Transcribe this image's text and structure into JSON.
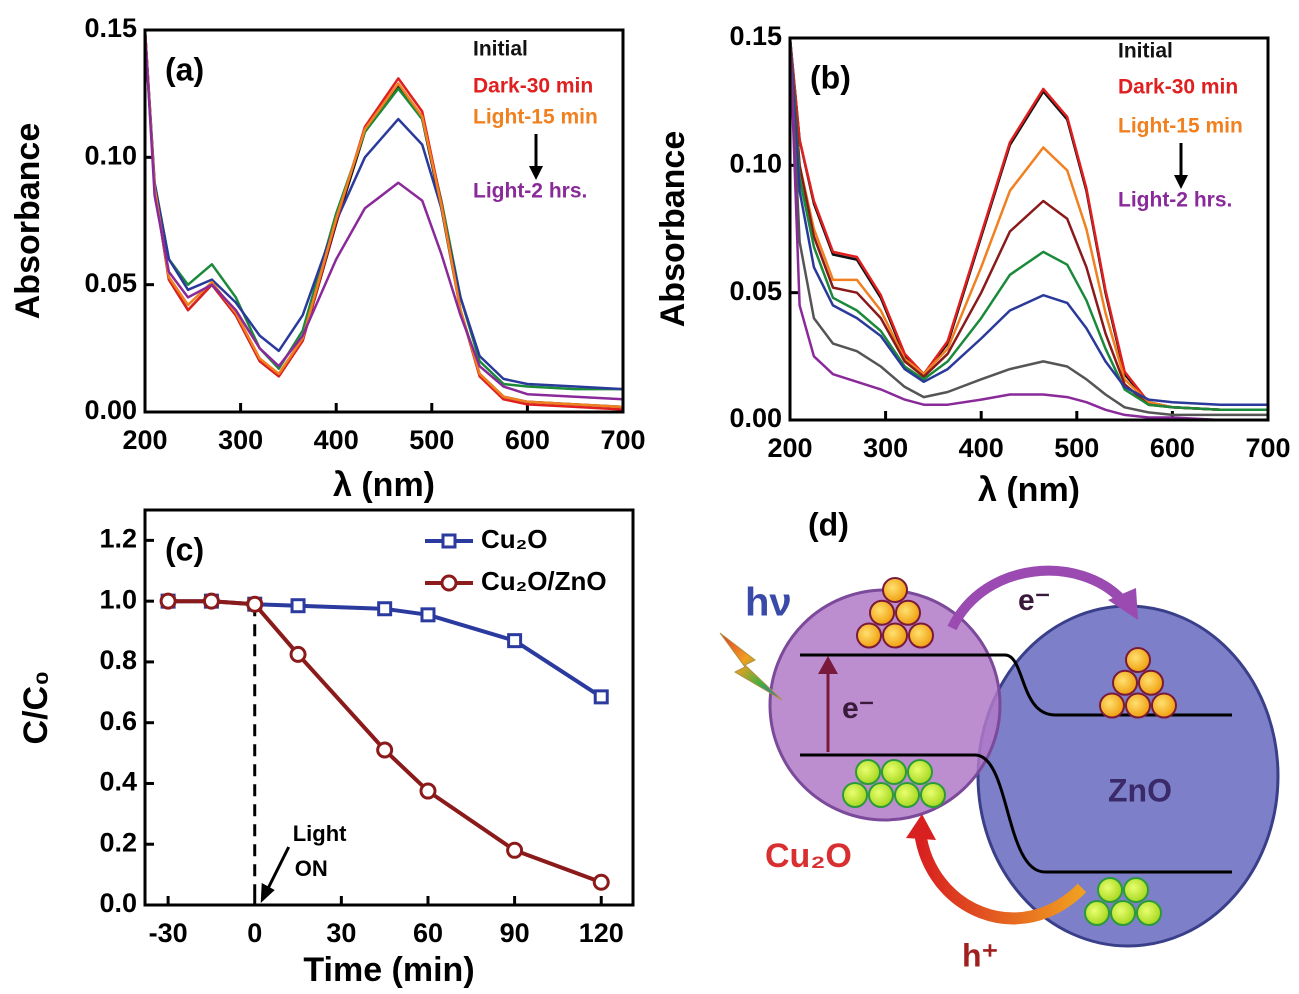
{
  "chart_data": [
    {
      "type": "line",
      "label": "(a)",
      "ylabel": "Absorbance",
      "xlabel": "λ (nm)",
      "xlim": [
        200,
        700
      ],
      "ylim": [
        0,
        0.15
      ],
      "xticks": [
        200,
        300,
        400,
        500,
        600,
        700
      ],
      "yticks": [
        {
          "value": 0,
          "label": "0.00"
        },
        {
          "value": 0.05,
          "label": "0.05"
        },
        {
          "value": 0.1,
          "label": "0.10"
        },
        {
          "value": 0.15,
          "label": "0.15"
        }
      ],
      "x": [
        200,
        210,
        225,
        245,
        270,
        295,
        320,
        340,
        365,
        400,
        430,
        465,
        490,
        510,
        530,
        550,
        575,
        600,
        650,
        700
      ],
      "series": [
        {
          "name": "Initial",
          "color": "#111111",
          "values": [
            0.15,
            0.088,
            0.052,
            0.04,
            0.05,
            0.038,
            0.02,
            0.014,
            0.028,
            0.074,
            0.11,
            0.128,
            0.115,
            0.08,
            0.04,
            0.015,
            0.006,
            0.004,
            0.003,
            0.002
          ]
        },
        {
          "color": "#1a8a3a",
          "values": [
            0.15,
            0.09,
            0.06,
            0.05,
            0.058,
            0.045,
            0.025,
            0.017,
            0.032,
            0.078,
            0.11,
            0.127,
            0.115,
            0.083,
            0.045,
            0.02,
            0.011,
            0.01,
            0.009,
            0.009
          ]
        },
        {
          "color": "#2a3a9a",
          "values": [
            0.15,
            0.09,
            0.06,
            0.048,
            0.052,
            0.043,
            0.03,
            0.024,
            0.038,
            0.075,
            0.1,
            0.115,
            0.105,
            0.08,
            0.045,
            0.022,
            0.013,
            0.011,
            0.01,
            0.009
          ]
        },
        {
          "name": "Dark-30 min",
          "color": "#e02020",
          "values": [
            0.15,
            0.088,
            0.052,
            0.04,
            0.05,
            0.038,
            0.02,
            0.014,
            0.028,
            0.075,
            0.112,
            0.131,
            0.118,
            0.082,
            0.04,
            0.014,
            0.005,
            0.003,
            0.002,
            0.001
          ]
        },
        {
          "name": "Light-15 min",
          "color": "#f08020",
          "values": [
            0.15,
            0.088,
            0.053,
            0.042,
            0.051,
            0.039,
            0.021,
            0.015,
            0.029,
            0.076,
            0.111,
            0.129,
            0.116,
            0.081,
            0.04,
            0.015,
            0.006,
            0.004,
            0.003,
            0.002
          ]
        },
        {
          "name": "Light-2 hrs.",
          "color": "#8a2a9a",
          "values": [
            0.15,
            0.085,
            0.055,
            0.045,
            0.05,
            0.04,
            0.025,
            0.018,
            0.03,
            0.06,
            0.08,
            0.09,
            0.083,
            0.062,
            0.038,
            0.018,
            0.01,
            0.007,
            0.006,
            0.005
          ]
        }
      ]
    },
    {
      "type": "line",
      "label": "(b)",
      "ylabel": "Absorbance",
      "xlabel": "λ (nm)",
      "xlim": [
        200,
        700
      ],
      "ylim": [
        0,
        0.15
      ],
      "xticks": [
        200,
        300,
        400,
        500,
        600,
        700
      ],
      "yticks": [
        {
          "value": 0,
          "label": "0.00"
        },
        {
          "value": 0.05,
          "label": "0.05"
        },
        {
          "value": 0.1,
          "label": "0.10"
        },
        {
          "value": 0.15,
          "label": "0.15"
        }
      ],
      "x": [
        200,
        210,
        225,
        245,
        270,
        295,
        320,
        340,
        365,
        400,
        430,
        465,
        490,
        510,
        530,
        550,
        575,
        600,
        650,
        700
      ],
      "series": [
        {
          "name": "Initial",
          "color": "#111111",
          "values": [
            0.15,
            0.11,
            0.085,
            0.065,
            0.063,
            0.048,
            0.025,
            0.018,
            0.03,
            0.072,
            0.108,
            0.129,
            0.118,
            0.09,
            0.05,
            0.018,
            0.007,
            0.005,
            0.004,
            0.004
          ]
        },
        {
          "name": "Dark-30 min",
          "color": "#e02020",
          "values": [
            0.15,
            0.11,
            0.086,
            0.066,
            0.064,
            0.049,
            0.026,
            0.018,
            0.031,
            0.073,
            0.109,
            0.13,
            0.119,
            0.091,
            0.051,
            0.019,
            0.007,
            0.005,
            0.004,
            0.004
          ]
        },
        {
          "name": "Light-15 min",
          "color": "#f08020",
          "values": [
            0.15,
            0.1,
            0.075,
            0.055,
            0.055,
            0.043,
            0.024,
            0.018,
            0.028,
            0.06,
            0.09,
            0.107,
            0.098,
            0.075,
            0.042,
            0.016,
            0.007,
            0.005,
            0.004,
            0.004
          ]
        },
        {
          "color": "#8a1a1a",
          "values": [
            0.15,
            0.1,
            0.072,
            0.052,
            0.05,
            0.04,
            0.023,
            0.017,
            0.026,
            0.05,
            0.074,
            0.086,
            0.079,
            0.06,
            0.034,
            0.014,
            0.006,
            0.005,
            0.004,
            0.004
          ]
        },
        {
          "color": "#1a8a3a",
          "values": [
            0.15,
            0.095,
            0.068,
            0.048,
            0.043,
            0.035,
            0.021,
            0.016,
            0.023,
            0.04,
            0.057,
            0.066,
            0.061,
            0.047,
            0.028,
            0.012,
            0.006,
            0.005,
            0.004,
            0.004
          ]
        },
        {
          "color": "#2a3a9a",
          "values": [
            0.15,
            0.09,
            0.06,
            0.045,
            0.04,
            0.033,
            0.02,
            0.015,
            0.02,
            0.032,
            0.043,
            0.049,
            0.046,
            0.036,
            0.023,
            0.013,
            0.008,
            0.007,
            0.006,
            0.006
          ]
        },
        {
          "color": "#555555",
          "values": [
            0.15,
            0.07,
            0.04,
            0.03,
            0.027,
            0.021,
            0.013,
            0.009,
            0.011,
            0.016,
            0.02,
            0.023,
            0.021,
            0.016,
            0.01,
            0.005,
            0.003,
            0.002,
            0.002,
            0.002
          ]
        },
        {
          "name": "Light-2 hrs.",
          "color": "#8a2a9a",
          "values": [
            0.15,
            0.045,
            0.025,
            0.018,
            0.015,
            0.012,
            0.008,
            0.006,
            0.006,
            0.008,
            0.01,
            0.01,
            0.009,
            0.007,
            0.004,
            0.002,
            0.001,
            0.001,
            0,
            0
          ]
        }
      ]
    },
    {
      "type": "line",
      "label": "(c)",
      "ylabel": "C/C₀",
      "xlabel": "Time (min)",
      "xlim": [
        -38,
        131
      ],
      "ylim": [
        0,
        1.3
      ],
      "xticks": [
        -30,
        0,
        30,
        60,
        90,
        120
      ],
      "yticks": [
        {
          "value": 0,
          "label": "0.0"
        },
        0.2,
        0.4,
        0.6,
        0.8,
        {
          "value": 1,
          "label": "1.0"
        },
        1.2
      ],
      "light_on": 0,
      "annotation": [
        "Light",
        "ON"
      ],
      "x": [
        -30,
        -15,
        0,
        15,
        45,
        60,
        90,
        120
      ],
      "series": [
        {
          "name": "Cu₂O",
          "color": "#2b3a9e",
          "marker": "square",
          "values": [
            1.0,
            1.0,
            0.99,
            0.985,
            0.975,
            0.955,
            0.87,
            0.685
          ]
        },
        {
          "name": "Cu₂O/ZnO",
          "color": "#8b1a1a",
          "marker": "circle",
          "values": [
            1.0,
            1.0,
            0.99,
            0.825,
            0.51,
            0.375,
            0.18,
            0.075
          ]
        }
      ]
    }
  ],
  "diagram": {
    "label": "(d)",
    "light": "hν",
    "electron_top": "e⁻",
    "electron_gap": "e⁻",
    "zno": "ZnO",
    "cu2o": "Cu₂O",
    "hole": "h⁺"
  }
}
